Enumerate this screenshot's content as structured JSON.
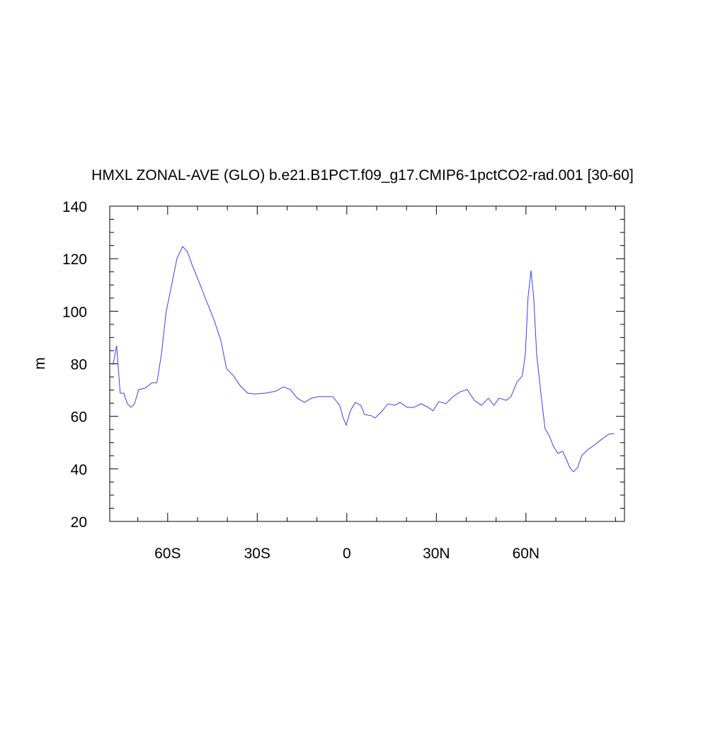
{
  "chart_data": {
    "type": "line",
    "title": "HMXL ZONAL-AVE (GLO) b.e21.B1PCT.f09_g17.CMIP6-1pctCO2-rad.001 [30-60]",
    "y_label": "m",
    "x": [
      -78.3,
      -77.1,
      -75.9,
      -74.7,
      -73.5,
      -72.3,
      -71.1,
      -69.7,
      -67.6,
      -65.2,
      -63.6,
      -62.1,
      -60.5,
      -58.8,
      -56.9,
      -55.0,
      -53.4,
      -51.7,
      -49.3,
      -47.0,
      -44.6,
      -42.2,
      -40.3,
      -38.0,
      -35.6,
      -33.2,
      -30.8,
      -27.3,
      -23.7,
      -21.3,
      -18.9,
      -16.6,
      -14.2,
      -11.9,
      -9.5,
      -7.1,
      -4.7,
      -2.4,
      -1.2,
      -0.2,
      1.2,
      2.8,
      4.7,
      5.9,
      8.3,
      9.5,
      11.9,
      13.8,
      16.1,
      17.8,
      20.2,
      22.5,
      24.9,
      27.3,
      28.9,
      30.8,
      33.2,
      35.6,
      37.9,
      40.3,
      42.7,
      45.1,
      47.4,
      49.3,
      51.0,
      53.4,
      55.0,
      56.9,
      58.8,
      59.8,
      60.7,
      61.7,
      62.6,
      63.6,
      65.0,
      66.4,
      67.8,
      69.2,
      70.7,
      72.3,
      73.5,
      74.7,
      75.9,
      77.3,
      78.7,
      80.6,
      83.0,
      85.4,
      87.7,
      89.6
    ],
    "series": [
      {
        "color": "#3b3bff",
        "values": [
          79.6,
          86.9,
          68.8,
          68.8,
          64.8,
          63.4,
          64.8,
          70.2,
          70.7,
          72.8,
          72.8,
          83.6,
          99.8,
          109.3,
          120.0,
          124.6,
          122.7,
          117.3,
          110.6,
          103.9,
          97.1,
          89.0,
          78.2,
          75.5,
          71.5,
          68.8,
          68.5,
          68.8,
          69.6,
          71.2,
          70.2,
          66.9,
          65.3,
          66.9,
          67.5,
          67.5,
          67.5,
          64.2,
          59.4,
          56.7,
          62.1,
          65.3,
          64.2,
          60.7,
          60.2,
          59.4,
          62.1,
          64.8,
          64.2,
          65.3,
          63.4,
          63.4,
          64.8,
          63.4,
          62.1,
          65.6,
          64.8,
          67.5,
          69.3,
          70.2,
          66.1,
          64.2,
          66.9,
          64.2,
          66.9,
          66.1,
          67.5,
          72.8,
          75.5,
          83.6,
          105.2,
          115.5,
          105.2,
          83.6,
          68.8,
          55.3,
          52.6,
          48.6,
          45.9,
          46.7,
          43.7,
          40.5,
          38.9,
          40.5,
          45.1,
          47.2,
          49.1,
          51.3,
          53.2,
          53.4
        ]
      }
    ],
    "xlim": [
      -79.4,
      93
    ],
    "xticks": [
      {
        "value": -60,
        "label": "60S"
      },
      {
        "value": -30,
        "label": "30S"
      },
      0,
      {
        "value": 30,
        "label": "30N"
      },
      {
        "value": 60,
        "label": "60N"
      }
    ],
    "xminorticks": [
      -70,
      -50,
      -40,
      -20,
      -10,
      10,
      20,
      40,
      50,
      70,
      80,
      90
    ],
    "ylim": [
      20,
      140
    ],
    "yticks": [
      20,
      40,
      60,
      80,
      100,
      120,
      140
    ],
    "yminorticks": [
      25,
      30,
      35,
      45,
      50,
      55,
      65,
      70,
      75,
      85,
      90,
      95,
      105,
      110,
      115,
      125,
      130,
      135
    ]
  }
}
